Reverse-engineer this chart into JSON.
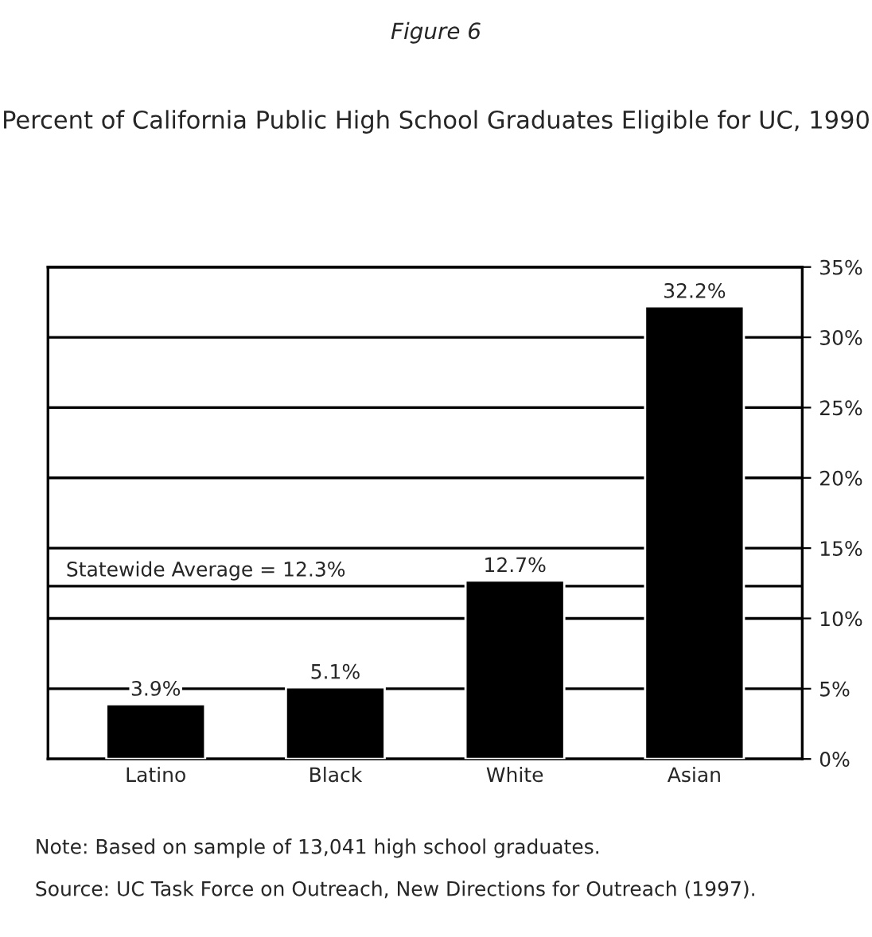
{
  "chart_data": {
    "type": "bar",
    "title": "Figure 6",
    "subtitle": "Percent of California Public High School Graduates Eligible for UC, 1990",
    "categories": [
      "Latino",
      "Black",
      "White",
      "Asian"
    ],
    "values": [
      3.9,
      5.1,
      12.7,
      32.2
    ],
    "color": "#000000",
    "value_labels": [
      "3.9%",
      "5.1%",
      "12.7%",
      "32.2%"
    ],
    "ylim": [
      0,
      35
    ],
    "yticks": [
      {
        "value": 0,
        "label": "0%"
      },
      {
        "value": 5,
        "label": "5%"
      },
      {
        "value": 10,
        "label": "10%"
      },
      {
        "value": 15,
        "label": "15%"
      },
      {
        "value": 20,
        "label": "20%"
      },
      {
        "value": 25,
        "label": "25%"
      },
      {
        "value": 30,
        "label": "30%"
      },
      {
        "value": 35,
        "label": "35%"
      }
    ],
    "grid": "y",
    "ref_lines": [
      {
        "axis": "y",
        "value": 12.3,
        "label": "Statewide Average = 12.3%",
        "color": "#000000"
      }
    ],
    "annotations": [
      "Note: Based on sample of 13,041 high school graduates.",
      "Source: UC Task Force on Outreach, New Directions for Outreach (1997)."
    ]
  }
}
